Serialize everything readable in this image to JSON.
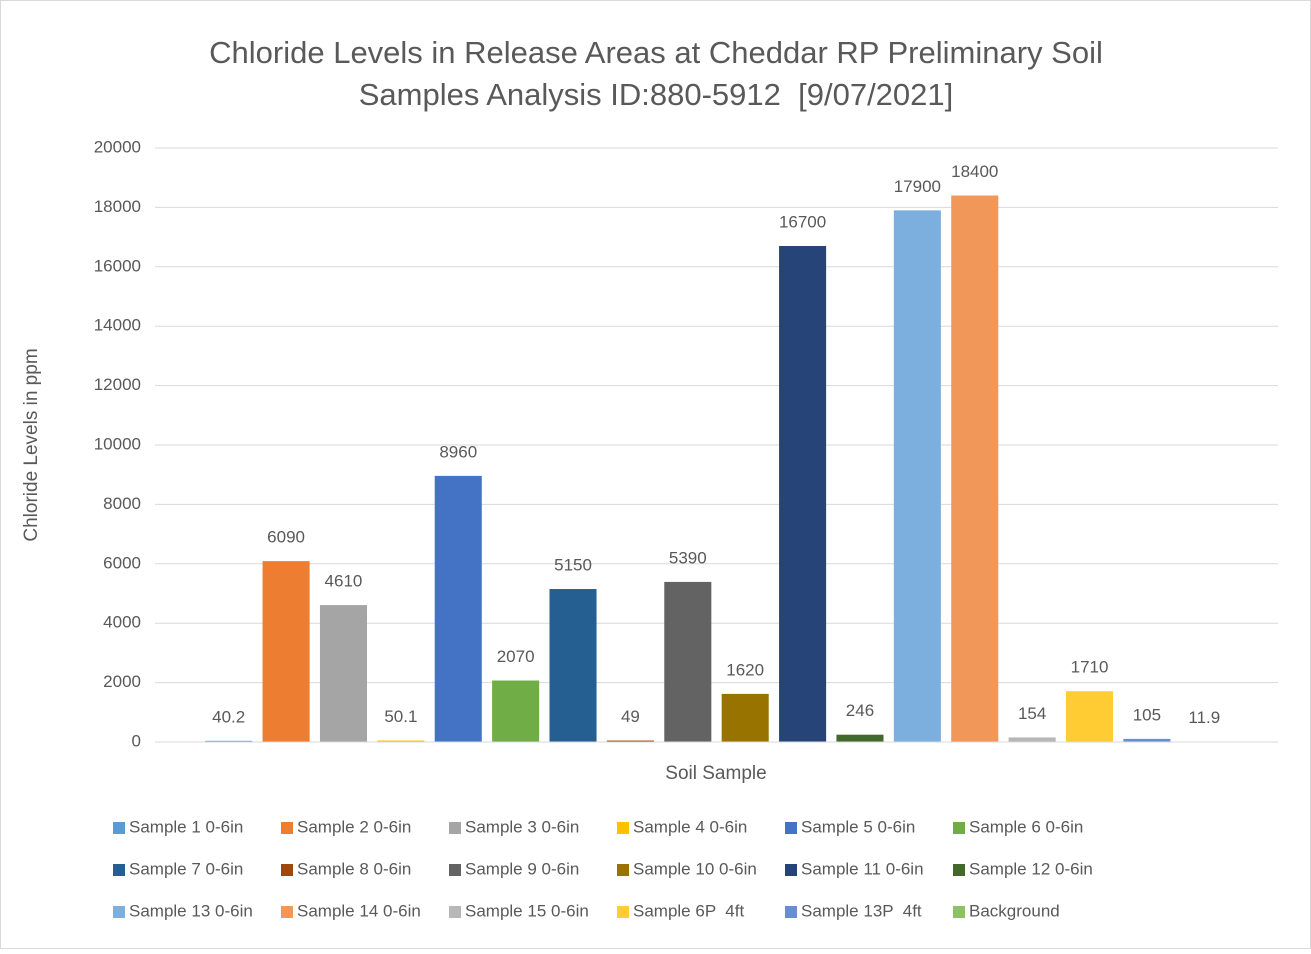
{
  "chart_data": {
    "type": "bar",
    "title": [
      "Chloride Levels in Release Areas at Cheddar RP Preliminary Soil",
      "Samples Analysis ID:880-5912  [9/07/2021]"
    ],
    "x_label": "Soil Sample",
    "y_label": "Chloride Levels in ppm",
    "categories": [
      null
    ],
    "series": [
      {
        "name": "Sample 1 0-6in",
        "color": "#5B9BD5",
        "values": [
          40.2
        ]
      },
      {
        "name": "Sample 2 0-6in",
        "color": "#ED7D31",
        "values": [
          6090
        ]
      },
      {
        "name": "Sample 3 0-6in",
        "color": "#A5A5A5",
        "values": [
          4610
        ]
      },
      {
        "name": "Sample 4 0-6in",
        "color": "#FFC000",
        "values": [
          50.1
        ]
      },
      {
        "name": "Sample 5 0-6in",
        "color": "#4472C4",
        "values": [
          8960
        ]
      },
      {
        "name": "Sample 6 0-6in",
        "color": "#70AD47",
        "values": [
          2070
        ]
      },
      {
        "name": "Sample 7 0-6in",
        "color": "#255E91",
        "values": [
          5150
        ]
      },
      {
        "name": "Sample 8 0-6in",
        "color": "#9E480E",
        "values": [
          49
        ]
      },
      {
        "name": "Sample 9 0-6in",
        "color": "#636363",
        "values": [
          5390
        ]
      },
      {
        "name": "Sample 10 0-6in",
        "color": "#997300",
        "values": [
          1620
        ]
      },
      {
        "name": "Sample 11 0-6in",
        "color": "#264478",
        "values": [
          16700
        ]
      },
      {
        "name": "Sample 12 0-6in",
        "color": "#43682B",
        "values": [
          246
        ]
      },
      {
        "name": "Sample 13 0-6in",
        "color": "#7CAFDD",
        "values": [
          17900
        ]
      },
      {
        "name": "Sample 14 0-6in",
        "color": "#F1975A",
        "values": [
          18400
        ]
      },
      {
        "name": "Sample 15 0-6in",
        "color": "#B7B7B7",
        "values": [
          154
        ]
      },
      {
        "name": "Sample 6P  4ft",
        "color": "#FFCD33",
        "values": [
          1710
        ]
      },
      {
        "name": "Sample 13P  4ft",
        "color": "#698ED0",
        "values": [
          105
        ]
      },
      {
        "name": "Background",
        "color": "#8CC168",
        "values": [
          11.9
        ]
      }
    ],
    "ylim": [
      0,
      20000
    ],
    "yticks": [
      0,
      2000,
      4000,
      6000,
      8000,
      10000,
      12000,
      14000,
      16000,
      18000,
      20000
    ],
    "grid": true,
    "legend": "bottom"
  }
}
